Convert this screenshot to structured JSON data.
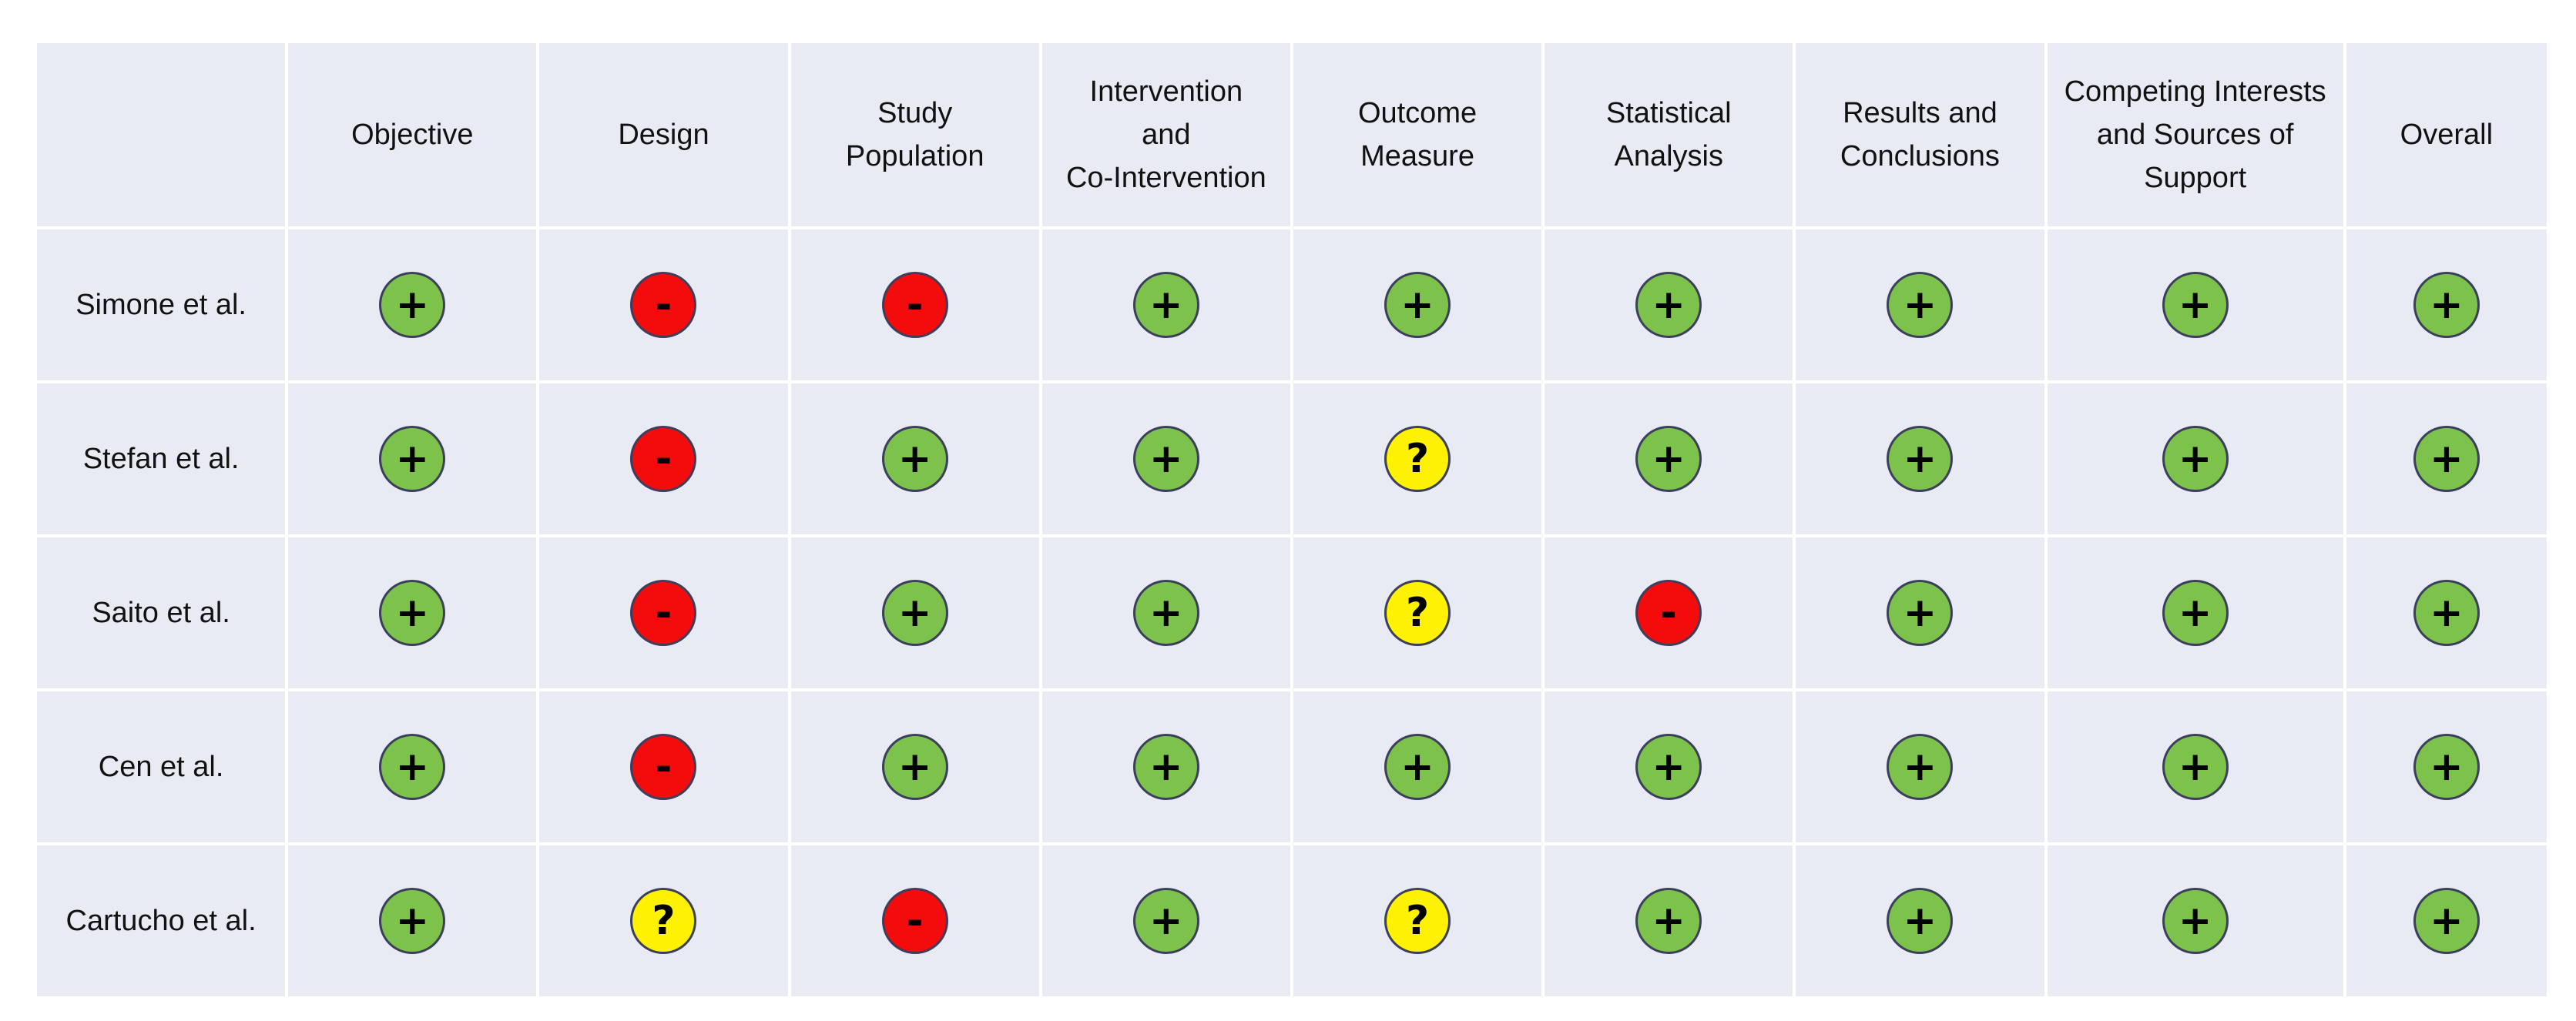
{
  "legend_colors": {
    "low_risk": "#7dc24b",
    "high_risk": "#f40c0c",
    "unclear": "#fff200",
    "cell_bg": "#e8ebf3"
  },
  "symbols": {
    "low": "+",
    "high": "-",
    "unclear": "?"
  },
  "columns": [
    "Objective",
    "Design",
    "Study\nPopulation",
    "Intervention\nand\nCo-Intervention",
    "Outcome\nMeasure",
    "Statistical\nAnalysis",
    "Results and\nConclusions",
    "Competing Interests\nand Sources of\nSupport",
    "Overall"
  ],
  "rows": [
    {
      "study": "Simone et al.",
      "ratings": [
        "low",
        "high",
        "high",
        "low",
        "low",
        "low",
        "low",
        "low",
        "low"
      ]
    },
    {
      "study": "Stefan et al.",
      "ratings": [
        "low",
        "high",
        "low",
        "low",
        "unclear",
        "low",
        "low",
        "low",
        "low"
      ]
    },
    {
      "study": "Saito et al.",
      "ratings": [
        "low",
        "high",
        "low",
        "low",
        "unclear",
        "high",
        "low",
        "low",
        "low"
      ]
    },
    {
      "study": "Cen et al.",
      "ratings": [
        "low",
        "high",
        "low",
        "low",
        "low",
        "low",
        "low",
        "low",
        "low"
      ]
    },
    {
      "study": "Cartucho et al.",
      "ratings": [
        "low",
        "unclear",
        "high",
        "low",
        "unclear",
        "low",
        "low",
        "low",
        "low"
      ]
    }
  ]
}
